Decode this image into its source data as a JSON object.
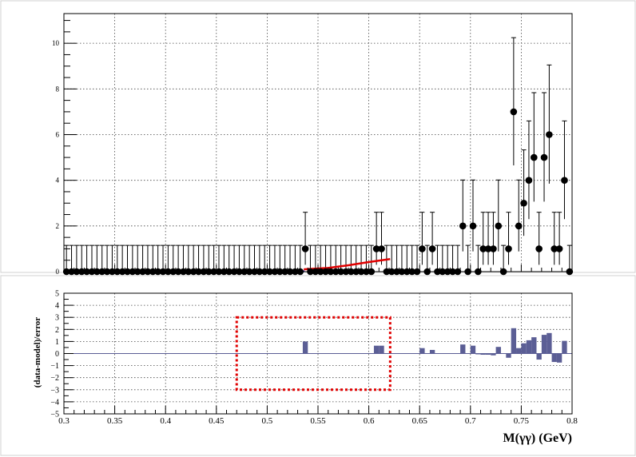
{
  "chart_data": [
    {
      "type": "scatter",
      "panel": "top",
      "title": "",
      "xlabel": "",
      "ylabel": "",
      "xlim": [
        0.3,
        0.8
      ],
      "ylim": [
        0,
        11.3
      ],
      "grid": true,
      "x_ticks": [
        "0.3",
        "0.35",
        "0.4",
        "0.45",
        "0.5",
        "0.55",
        "0.6",
        "0.65",
        "0.7",
        "0.75",
        "0.8"
      ],
      "y_ticks": [
        "0",
        "2",
        "4",
        "6",
        "8",
        "10"
      ],
      "bin_width": 0.005,
      "series": [
        {
          "kind": "data-points",
          "color": "#000000",
          "x": [
            0.3025,
            0.3075,
            0.3125,
            0.3175,
            0.3225,
            0.3275,
            0.3325,
            0.3375,
            0.3425,
            0.3475,
            0.3525,
            0.3575,
            0.3625,
            0.3675,
            0.3725,
            0.3775,
            0.3825,
            0.3875,
            0.3925,
            0.3975,
            0.4025,
            0.4075,
            0.4125,
            0.4175,
            0.4225,
            0.4275,
            0.4325,
            0.4375,
            0.4425,
            0.4475,
            0.4525,
            0.4575,
            0.4625,
            0.4675,
            0.4725,
            0.4775,
            0.4825,
            0.4875,
            0.4925,
            0.4975,
            0.5025,
            0.5075,
            0.5125,
            0.5175,
            0.5225,
            0.5275,
            0.5325,
            0.5375,
            0.5425,
            0.5475,
            0.5525,
            0.5575,
            0.5625,
            0.5675,
            0.5725,
            0.5775,
            0.5825,
            0.5875,
            0.5925,
            0.5975,
            0.6025,
            0.6075,
            0.6125,
            0.6175,
            0.6225,
            0.6275,
            0.6325,
            0.6375,
            0.6425,
            0.6475,
            0.6525,
            0.6575,
            0.6625,
            0.6675,
            0.6725,
            0.6775,
            0.6825,
            0.6875,
            0.6925,
            0.6975,
            0.7025,
            0.7075,
            0.7125,
            0.7175,
            0.7225,
            0.7275,
            0.7325,
            0.7375,
            0.7425,
            0.7475,
            0.7525,
            0.7575,
            0.7625,
            0.7675,
            0.7725,
            0.7775,
            0.7825,
            0.7875,
            0.7925,
            0.7975
          ],
          "y": [
            0,
            0,
            0,
            0,
            0,
            0,
            0,
            0,
            0,
            0,
            0,
            0,
            0,
            0,
            0,
            0,
            0,
            0,
            0,
            0,
            0,
            0,
            0,
            0,
            0,
            0,
            0,
            0,
            0,
            0,
            0,
            0,
            0,
            0,
            0,
            0,
            0,
            0,
            0,
            0,
            0,
            0,
            0,
            0,
            0,
            0,
            0,
            1,
            0,
            0,
            0,
            0,
            0,
            0,
            0,
            0,
            0,
            0,
            0,
            0,
            0,
            1,
            1,
            0,
            0,
            0,
            0,
            0,
            0,
            0,
            1,
            0,
            1,
            0,
            0,
            0,
            0,
            0,
            2,
            0,
            2,
            0,
            1,
            1,
            1,
            2,
            0,
            1,
            7,
            2,
            3,
            4,
            5,
            1,
            5,
            6,
            1,
            1,
            4,
            0
          ]
        },
        {
          "kind": "model-curve",
          "color": "#e00000",
          "x": [
            0.536,
            0.56,
            0.58,
            0.6,
            0.621
          ],
          "y": [
            0.1,
            0.16,
            0.28,
            0.42,
            0.55
          ]
        }
      ]
    },
    {
      "type": "bar",
      "panel": "bottom",
      "title": "",
      "xlabel": "M(γγ) (GeV)",
      "ylabel": "(data-model)/error",
      "xlim": [
        0.3,
        0.8
      ],
      "ylim": [
        -5,
        5
      ],
      "grid": true,
      "x_ticks": [
        "0.3",
        "0.35",
        "0.4",
        "0.45",
        "0.5",
        "0.55",
        "0.6",
        "0.65",
        "0.7",
        "0.75",
        "0.8"
      ],
      "y_ticks": [
        "−5",
        "−4",
        "−3",
        "−2",
        "−1",
        "0",
        "1",
        "2",
        "3",
        "4",
        "5"
      ],
      "color": "#5b5e95",
      "x": [
        0.5375,
        0.6075,
        0.6125,
        0.6525,
        0.6625,
        0.6925,
        0.7025,
        0.7075,
        0.7125,
        0.7175,
        0.7225,
        0.7275,
        0.7375,
        0.7425,
        0.7475,
        0.7525,
        0.7575,
        0.7625,
        0.7675,
        0.7725,
        0.7775,
        0.7825,
        0.7875,
        0.7925
      ],
      "values": [
        1.0,
        0.65,
        0.65,
        0.45,
        0.3,
        0.75,
        0.65,
        -0.05,
        -0.1,
        -0.1,
        -0.15,
        0.55,
        -0.35,
        2.1,
        0.45,
        0.85,
        1.1,
        1.35,
        -0.5,
        1.55,
        1.7,
        -0.7,
        -0.75,
        1.05
      ],
      "annotation": {
        "kind": "dashed-box",
        "color": "#e00000",
        "x_range": [
          0.47,
          0.621
        ],
        "y_range": [
          -3,
          3
        ]
      }
    }
  ]
}
